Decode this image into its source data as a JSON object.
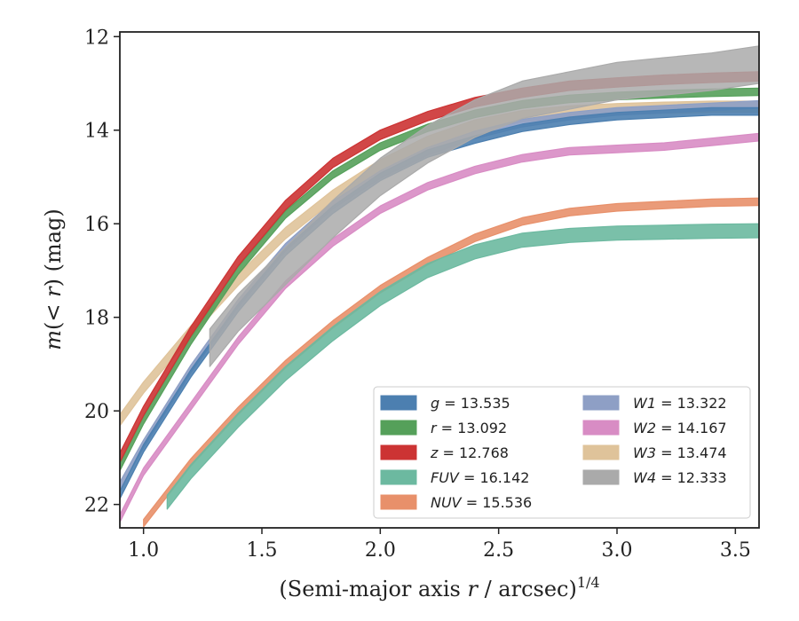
{
  "chart_data": {
    "type": "line",
    "xlabel": "(Semi-major axis r / arcsec)^1/4",
    "xlabel_parts": {
      "pre": "(Semi-major axis ",
      "var": "r",
      "mid": " / arcsec)",
      "sup": "1/4"
    },
    "ylabel": "m(< r) (mag)",
    "ylabel_parts": {
      "m": "m",
      "mid": "(< ",
      "var": "r",
      "post": ") (mag)"
    },
    "xlim": [
      0.9,
      3.6
    ],
    "ylim": [
      22.5,
      11.9
    ],
    "y_inverted": true,
    "x_ticks": [
      "1.0",
      "1.5",
      "2.0",
      "2.5",
      "3.0",
      "3.5"
    ],
    "y_ticks": [
      "12",
      "14",
      "16",
      "18",
      "20",
      "22"
    ],
    "grid": false,
    "legend_placement": "lower-right",
    "series": [
      {
        "name": "g",
        "label": "= 13.535",
        "color": "#4c7fb0",
        "band": 0.08,
        "points": [
          [
            0.9,
            21.8
          ],
          [
            1.0,
            20.8
          ],
          [
            1.2,
            19.2
          ],
          [
            1.4,
            17.8
          ],
          [
            1.6,
            16.6
          ],
          [
            1.8,
            15.7
          ],
          [
            2.0,
            15.0
          ],
          [
            2.2,
            14.5
          ],
          [
            2.4,
            14.2
          ],
          [
            2.6,
            13.95
          ],
          [
            2.8,
            13.8
          ],
          [
            3.0,
            13.7
          ],
          [
            3.2,
            13.65
          ],
          [
            3.4,
            13.6
          ],
          [
            3.6,
            13.6
          ]
        ]
      },
      {
        "name": "r",
        "label": "= 13.092",
        "color": "#55a05a",
        "band": 0.08,
        "points": [
          [
            0.9,
            21.2
          ],
          [
            1.0,
            20.2
          ],
          [
            1.2,
            18.5
          ],
          [
            1.4,
            17.0
          ],
          [
            1.6,
            15.8
          ],
          [
            1.8,
            14.95
          ],
          [
            2.0,
            14.35
          ],
          [
            2.2,
            13.95
          ],
          [
            2.4,
            13.65
          ],
          [
            2.6,
            13.45
          ],
          [
            2.8,
            13.33
          ],
          [
            3.0,
            13.27
          ],
          [
            3.2,
            13.23
          ],
          [
            3.4,
            13.2
          ],
          [
            3.6,
            13.18
          ]
        ]
      },
      {
        "name": "z",
        "label": "= 12.768",
        "color": "#cc3333",
        "band": 0.1,
        "points": [
          [
            0.9,
            21.0
          ],
          [
            1.0,
            20.0
          ],
          [
            1.2,
            18.3
          ],
          [
            1.4,
            16.8
          ],
          [
            1.6,
            15.6
          ],
          [
            1.8,
            14.7
          ],
          [
            2.0,
            14.1
          ],
          [
            2.2,
            13.7
          ],
          [
            2.4,
            13.4
          ],
          [
            2.6,
            13.2
          ],
          [
            2.8,
            13.05
          ],
          [
            3.0,
            12.98
          ],
          [
            3.2,
            12.92
          ],
          [
            3.4,
            12.88
          ],
          [
            3.6,
            12.85
          ]
        ]
      },
      {
        "name": "FUV",
        "label": "= 16.142",
        "color": "#6cb9a0",
        "band": 0.15,
        "points": [
          [
            1.1,
            21.95
          ],
          [
            1.2,
            21.3
          ],
          [
            1.4,
            20.2
          ],
          [
            1.6,
            19.2
          ],
          [
            1.8,
            18.35
          ],
          [
            2.0,
            17.6
          ],
          [
            2.2,
            17.0
          ],
          [
            2.4,
            16.6
          ],
          [
            2.6,
            16.35
          ],
          [
            2.8,
            16.25
          ],
          [
            3.0,
            16.2
          ],
          [
            3.2,
            16.18
          ],
          [
            3.4,
            16.16
          ],
          [
            3.6,
            16.15
          ]
        ]
      },
      {
        "name": "NUV",
        "label": "= 15.536",
        "color": "#e8906a",
        "band": 0.08,
        "points": [
          [
            1.0,
            22.4
          ],
          [
            1.2,
            21.1
          ],
          [
            1.4,
            20.0
          ],
          [
            1.6,
            19.0
          ],
          [
            1.8,
            18.15
          ],
          [
            2.0,
            17.4
          ],
          [
            2.2,
            16.8
          ],
          [
            2.4,
            16.3
          ],
          [
            2.6,
            15.95
          ],
          [
            2.8,
            15.75
          ],
          [
            3.0,
            15.65
          ],
          [
            3.2,
            15.6
          ],
          [
            3.4,
            15.55
          ],
          [
            3.6,
            15.53
          ]
        ]
      },
      {
        "name": "W1",
        "label": "= 13.322",
        "color": "#8e9fc5",
        "band": 0.08,
        "points": [
          [
            0.9,
            21.6
          ],
          [
            1.0,
            20.7
          ],
          [
            1.2,
            19.1
          ],
          [
            1.4,
            17.7
          ],
          [
            1.6,
            16.5
          ],
          [
            1.8,
            15.6
          ],
          [
            2.0,
            14.95
          ],
          [
            2.2,
            14.45
          ],
          [
            2.4,
            14.1
          ],
          [
            2.6,
            13.85
          ],
          [
            2.8,
            13.7
          ],
          [
            3.0,
            13.6
          ],
          [
            3.2,
            13.55
          ],
          [
            3.4,
            13.5
          ],
          [
            3.6,
            13.45
          ]
        ]
      },
      {
        "name": "W2",
        "label": "= 14.167",
        "color": "#d88cc4",
        "band": 0.08,
        "points": [
          [
            0.9,
            22.3
          ],
          [
            1.0,
            21.3
          ],
          [
            1.2,
            19.9
          ],
          [
            1.4,
            18.5
          ],
          [
            1.6,
            17.3
          ],
          [
            1.8,
            16.4
          ],
          [
            2.0,
            15.7
          ],
          [
            2.2,
            15.2
          ],
          [
            2.4,
            14.85
          ],
          [
            2.6,
            14.6
          ],
          [
            2.8,
            14.45
          ],
          [
            3.0,
            14.4
          ],
          [
            3.2,
            14.35
          ],
          [
            3.4,
            14.25
          ],
          [
            3.6,
            14.15
          ]
        ]
      },
      {
        "name": "W3",
        "label": "= 13.474",
        "color": "#dfc39a",
        "band": 0.12,
        "points": [
          [
            0.9,
            20.2
          ],
          [
            1.0,
            19.5
          ],
          [
            1.2,
            18.3
          ],
          [
            1.4,
            17.2
          ],
          [
            1.6,
            16.2
          ],
          [
            1.8,
            15.4
          ],
          [
            2.0,
            14.75
          ],
          [
            2.2,
            14.25
          ],
          [
            2.4,
            13.9
          ],
          [
            2.6,
            13.7
          ],
          [
            2.8,
            13.6
          ],
          [
            3.0,
            13.55
          ],
          [
            3.2,
            13.52
          ],
          [
            3.4,
            13.5
          ],
          [
            3.6,
            13.5
          ]
        ]
      },
      {
        "name": "W4",
        "label": "= 12.333",
        "color": "#aaaaaa",
        "band": 0.4,
        "points": [
          [
            1.28,
            18.65
          ],
          [
            1.4,
            17.9
          ],
          [
            1.6,
            16.9
          ],
          [
            1.8,
            15.9
          ],
          [
            2.0,
            15.0
          ],
          [
            2.2,
            14.3
          ],
          [
            2.4,
            13.75
          ],
          [
            2.6,
            13.35
          ],
          [
            2.8,
            13.15
          ],
          [
            3.0,
            12.95
          ],
          [
            3.2,
            12.85
          ],
          [
            3.4,
            12.75
          ],
          [
            3.6,
            12.6
          ]
        ]
      }
    ]
  }
}
